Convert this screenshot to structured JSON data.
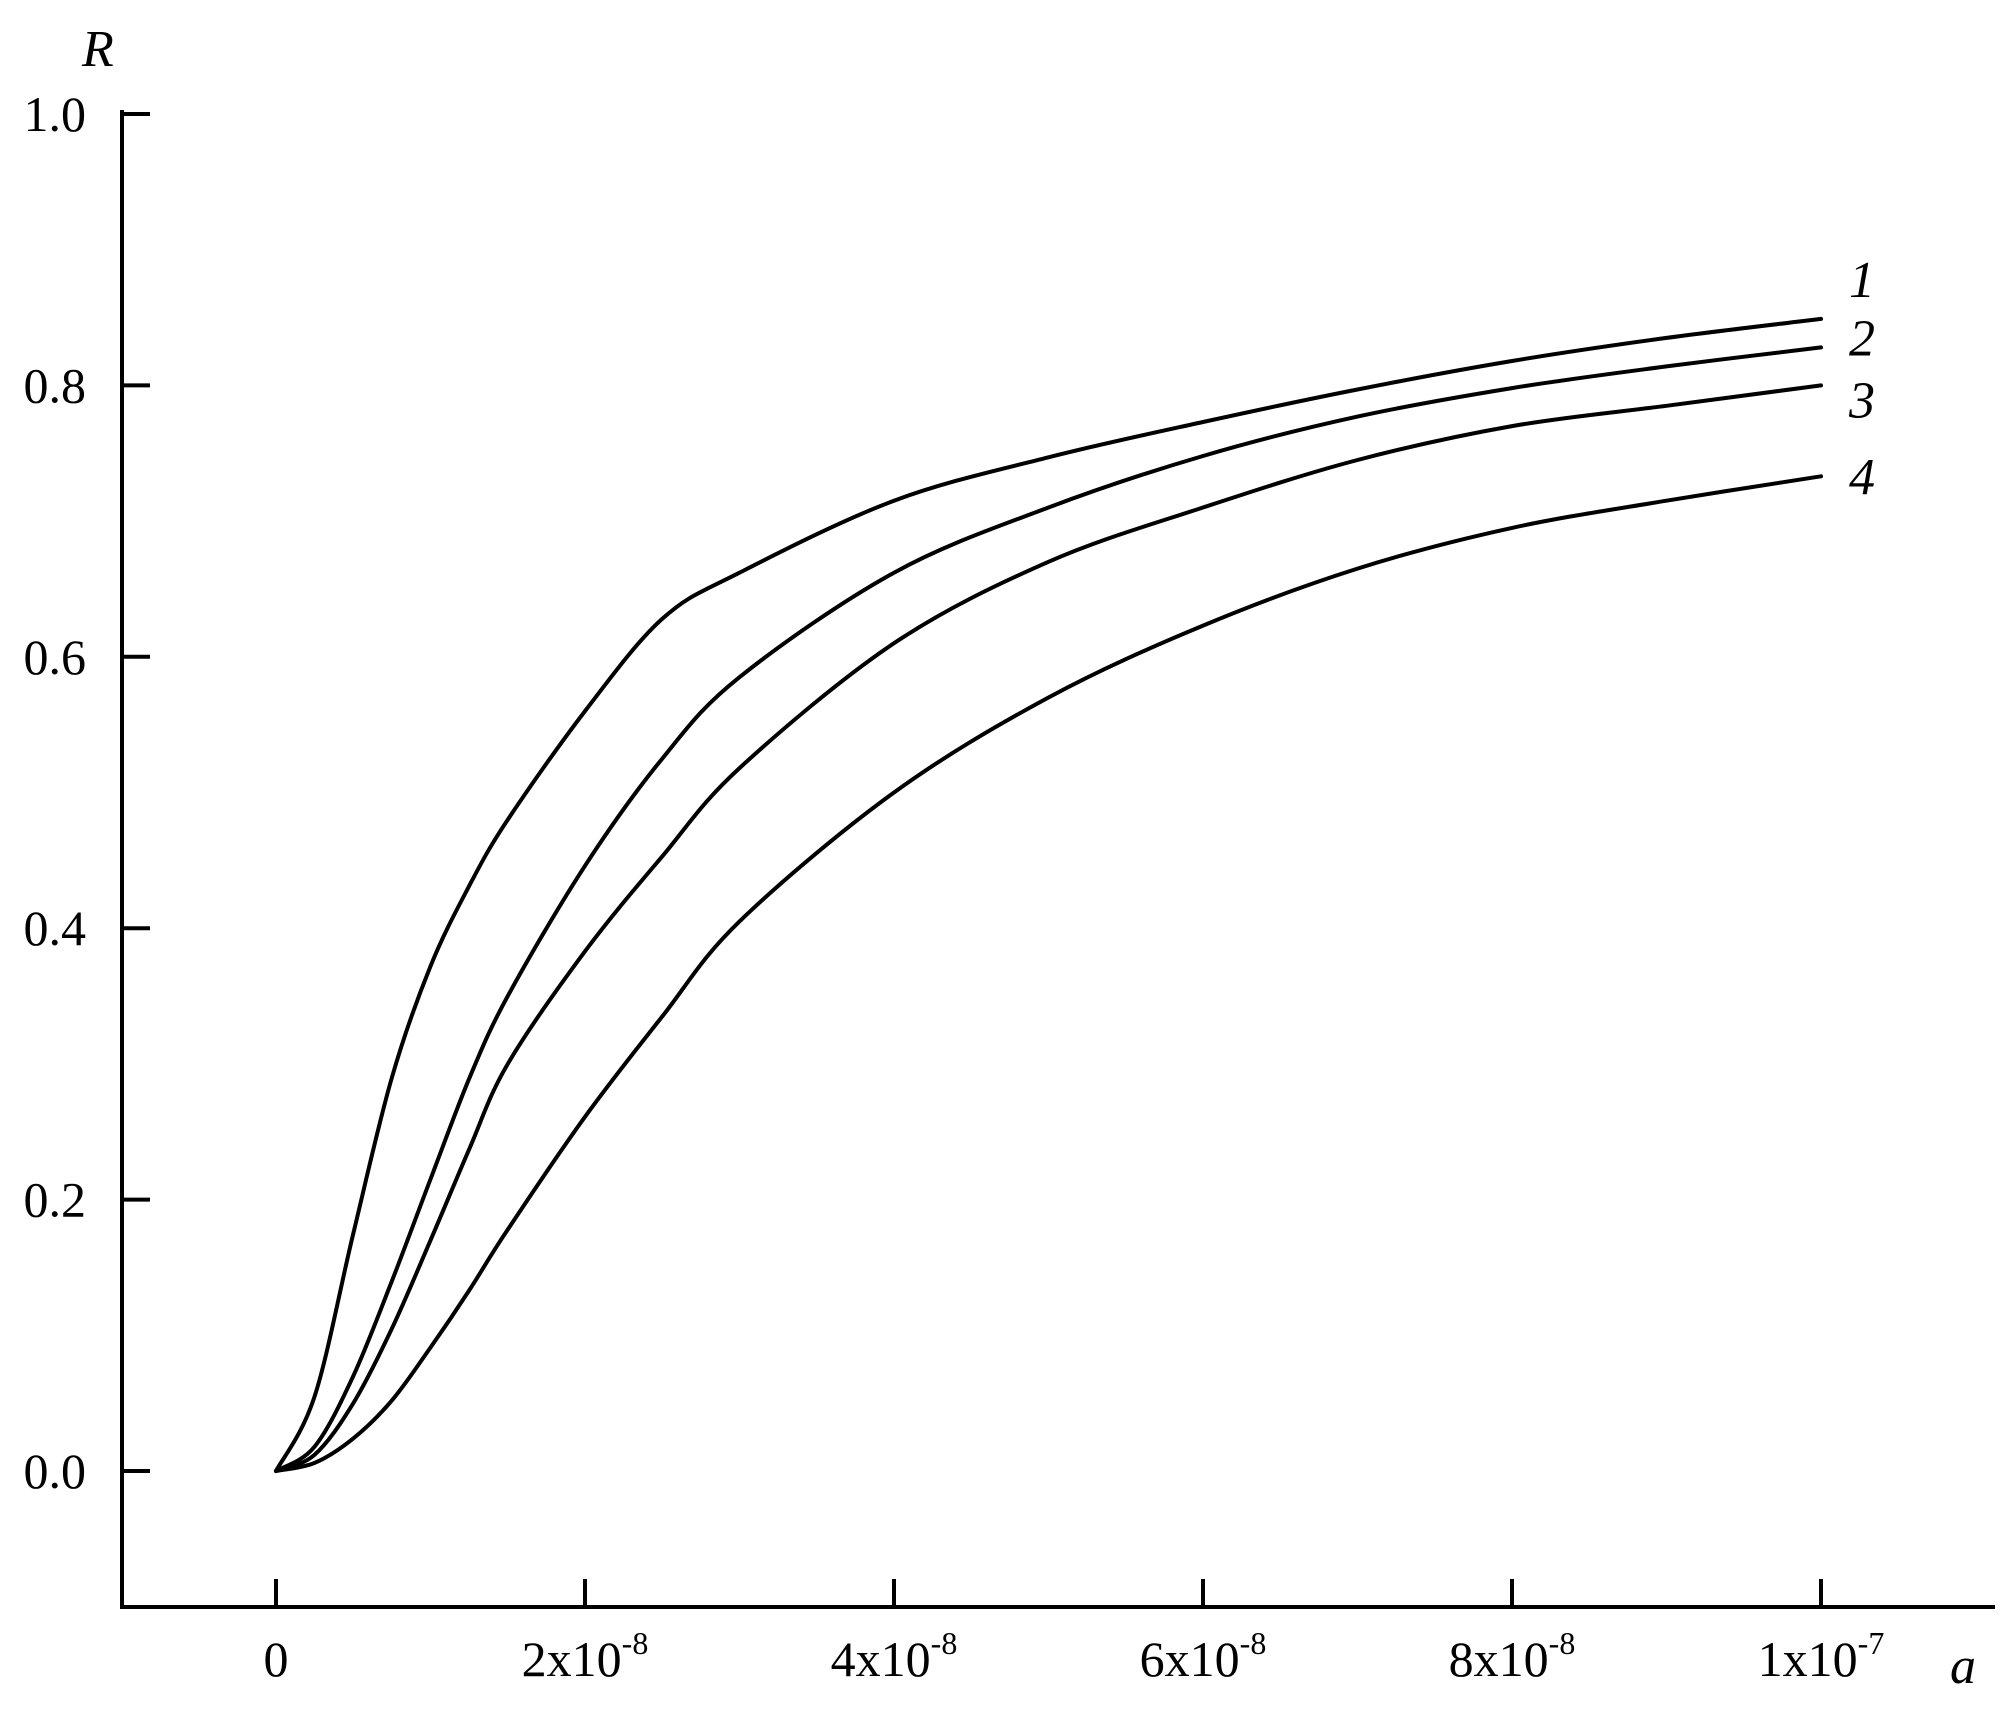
{
  "chart_data": {
    "type": "line",
    "ylabel": "R",
    "xlabel": "a",
    "xlim": [
      -1e-08,
      1.1e-07
    ],
    "ylim": [
      -0.1,
      1.0
    ],
    "grid": false,
    "legend": "none",
    "y_ticks": [
      {
        "value": 0.0,
        "label": "0.0"
      },
      {
        "value": 0.2,
        "label": "0.2"
      },
      {
        "value": 0.4,
        "label": "0.4"
      },
      {
        "value": 0.6,
        "label": "0.6"
      },
      {
        "value": 0.8,
        "label": "0.8"
      },
      {
        "value": 1.0,
        "label": "1.0"
      }
    ],
    "x_ticks": [
      {
        "value": 0,
        "mantissa": "0",
        "exponent": ""
      },
      {
        "value": 2e-08,
        "mantissa": "2x10",
        "exponent": "-8"
      },
      {
        "value": 4e-08,
        "mantissa": "4x10",
        "exponent": "-8"
      },
      {
        "value": 6e-08,
        "mantissa": "6x10",
        "exponent": "-8"
      },
      {
        "value": 8e-08,
        "mantissa": "8x10",
        "exponent": "-8"
      },
      {
        "value": 1e-07,
        "mantissa": "1x10",
        "exponent": "-7"
      }
    ],
    "x": [
      0,
      2.5e-09,
      5e-09,
      7.5e-09,
      1e-08,
      1.25e-08,
      1.5e-08,
      2e-08,
      2.5e-08,
      3e-08,
      4e-08,
      5e-08,
      6e-08,
      7e-08,
      8e-08,
      9e-08,
      1e-07
    ],
    "series": [
      {
        "label": "1",
        "values": [
          0.0,
          0.055,
          0.175,
          0.29,
          0.372,
          0.431,
          0.48,
          0.56,
          0.628,
          0.662,
          0.715,
          0.747,
          0.773,
          0.797,
          0.818,
          0.835,
          0.849
        ]
      },
      {
        "label": "2",
        "values": [
          0.0,
          0.018,
          0.07,
          0.14,
          0.215,
          0.289,
          0.35,
          0.446,
          0.525,
          0.585,
          0.662,
          0.71,
          0.748,
          0.777,
          0.798,
          0.814,
          0.828
        ]
      },
      {
        "label": "3",
        "values": [
          0.0,
          0.012,
          0.05,
          0.105,
          0.17,
          0.237,
          0.3,
          0.383,
          0.453,
          0.518,
          0.61,
          0.67,
          0.71,
          0.745,
          0.77,
          0.785,
          0.8
        ]
      },
      {
        "label": "4",
        "values": [
          0.0,
          0.006,
          0.024,
          0.052,
          0.091,
          0.133,
          0.178,
          0.261,
          0.335,
          0.405,
          0.5,
          0.57,
          0.623,
          0.665,
          0.695,
          0.715,
          0.733
        ]
      }
    ]
  }
}
